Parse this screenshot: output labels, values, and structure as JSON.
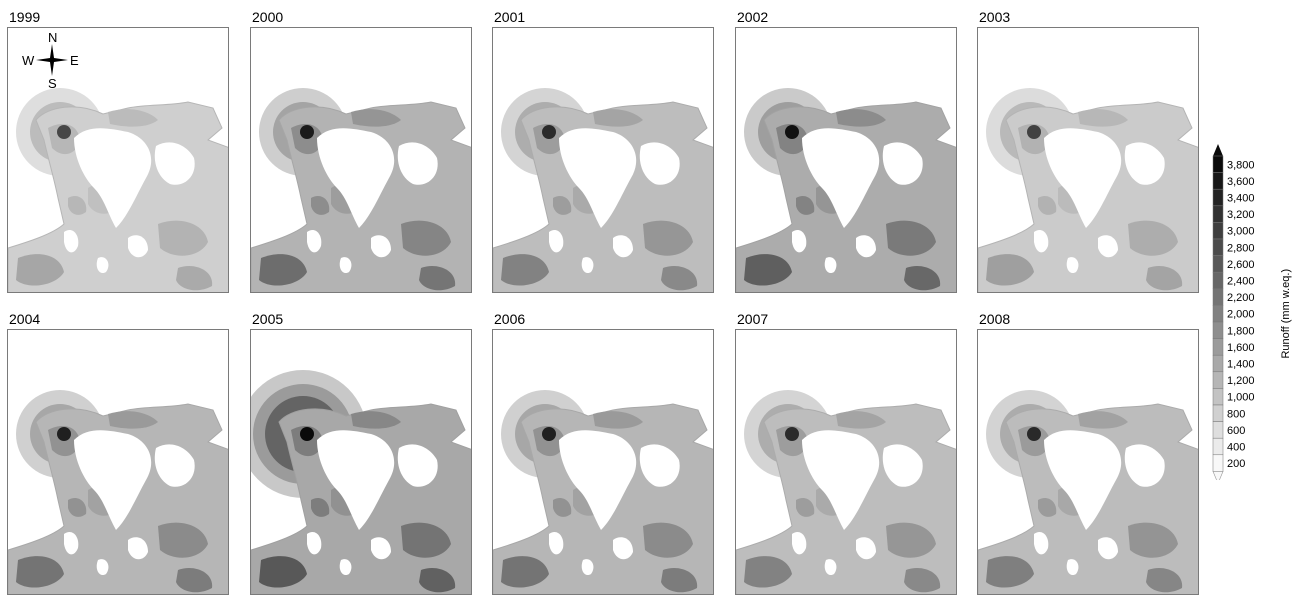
{
  "panels": [
    {
      "year": "1999",
      "intensity": 0.45
    },
    {
      "year": "2000",
      "intensity": 0.85
    },
    {
      "year": "2001",
      "intensity": 0.7
    },
    {
      "year": "2002",
      "intensity": 0.95
    },
    {
      "year": "2003",
      "intensity": 0.5
    },
    {
      "year": "2004",
      "intensity": 0.8
    },
    {
      "year": "2005",
      "intensity": 1.0
    },
    {
      "year": "2006",
      "intensity": 0.8
    },
    {
      "year": "2007",
      "intensity": 0.7
    },
    {
      "year": "2008",
      "intensity": 0.72
    }
  ],
  "compass": {
    "n": "N",
    "s": "S",
    "e": "E",
    "w": "W"
  },
  "legend": {
    "title": "Runoff (mm w.eq.)",
    "levels": [
      "3,800",
      "3,600",
      "3,400",
      "3,200",
      "3,000",
      "2,800",
      "2,600",
      "2,400",
      "2,200",
      "2,000",
      "1,800",
      "1,600",
      "1,400",
      "1,200",
      "1,000",
      "800",
      "600",
      "400",
      "200"
    ],
    "top_color": "#0a0a0a",
    "bottom_color": "#f8f8f8"
  }
}
